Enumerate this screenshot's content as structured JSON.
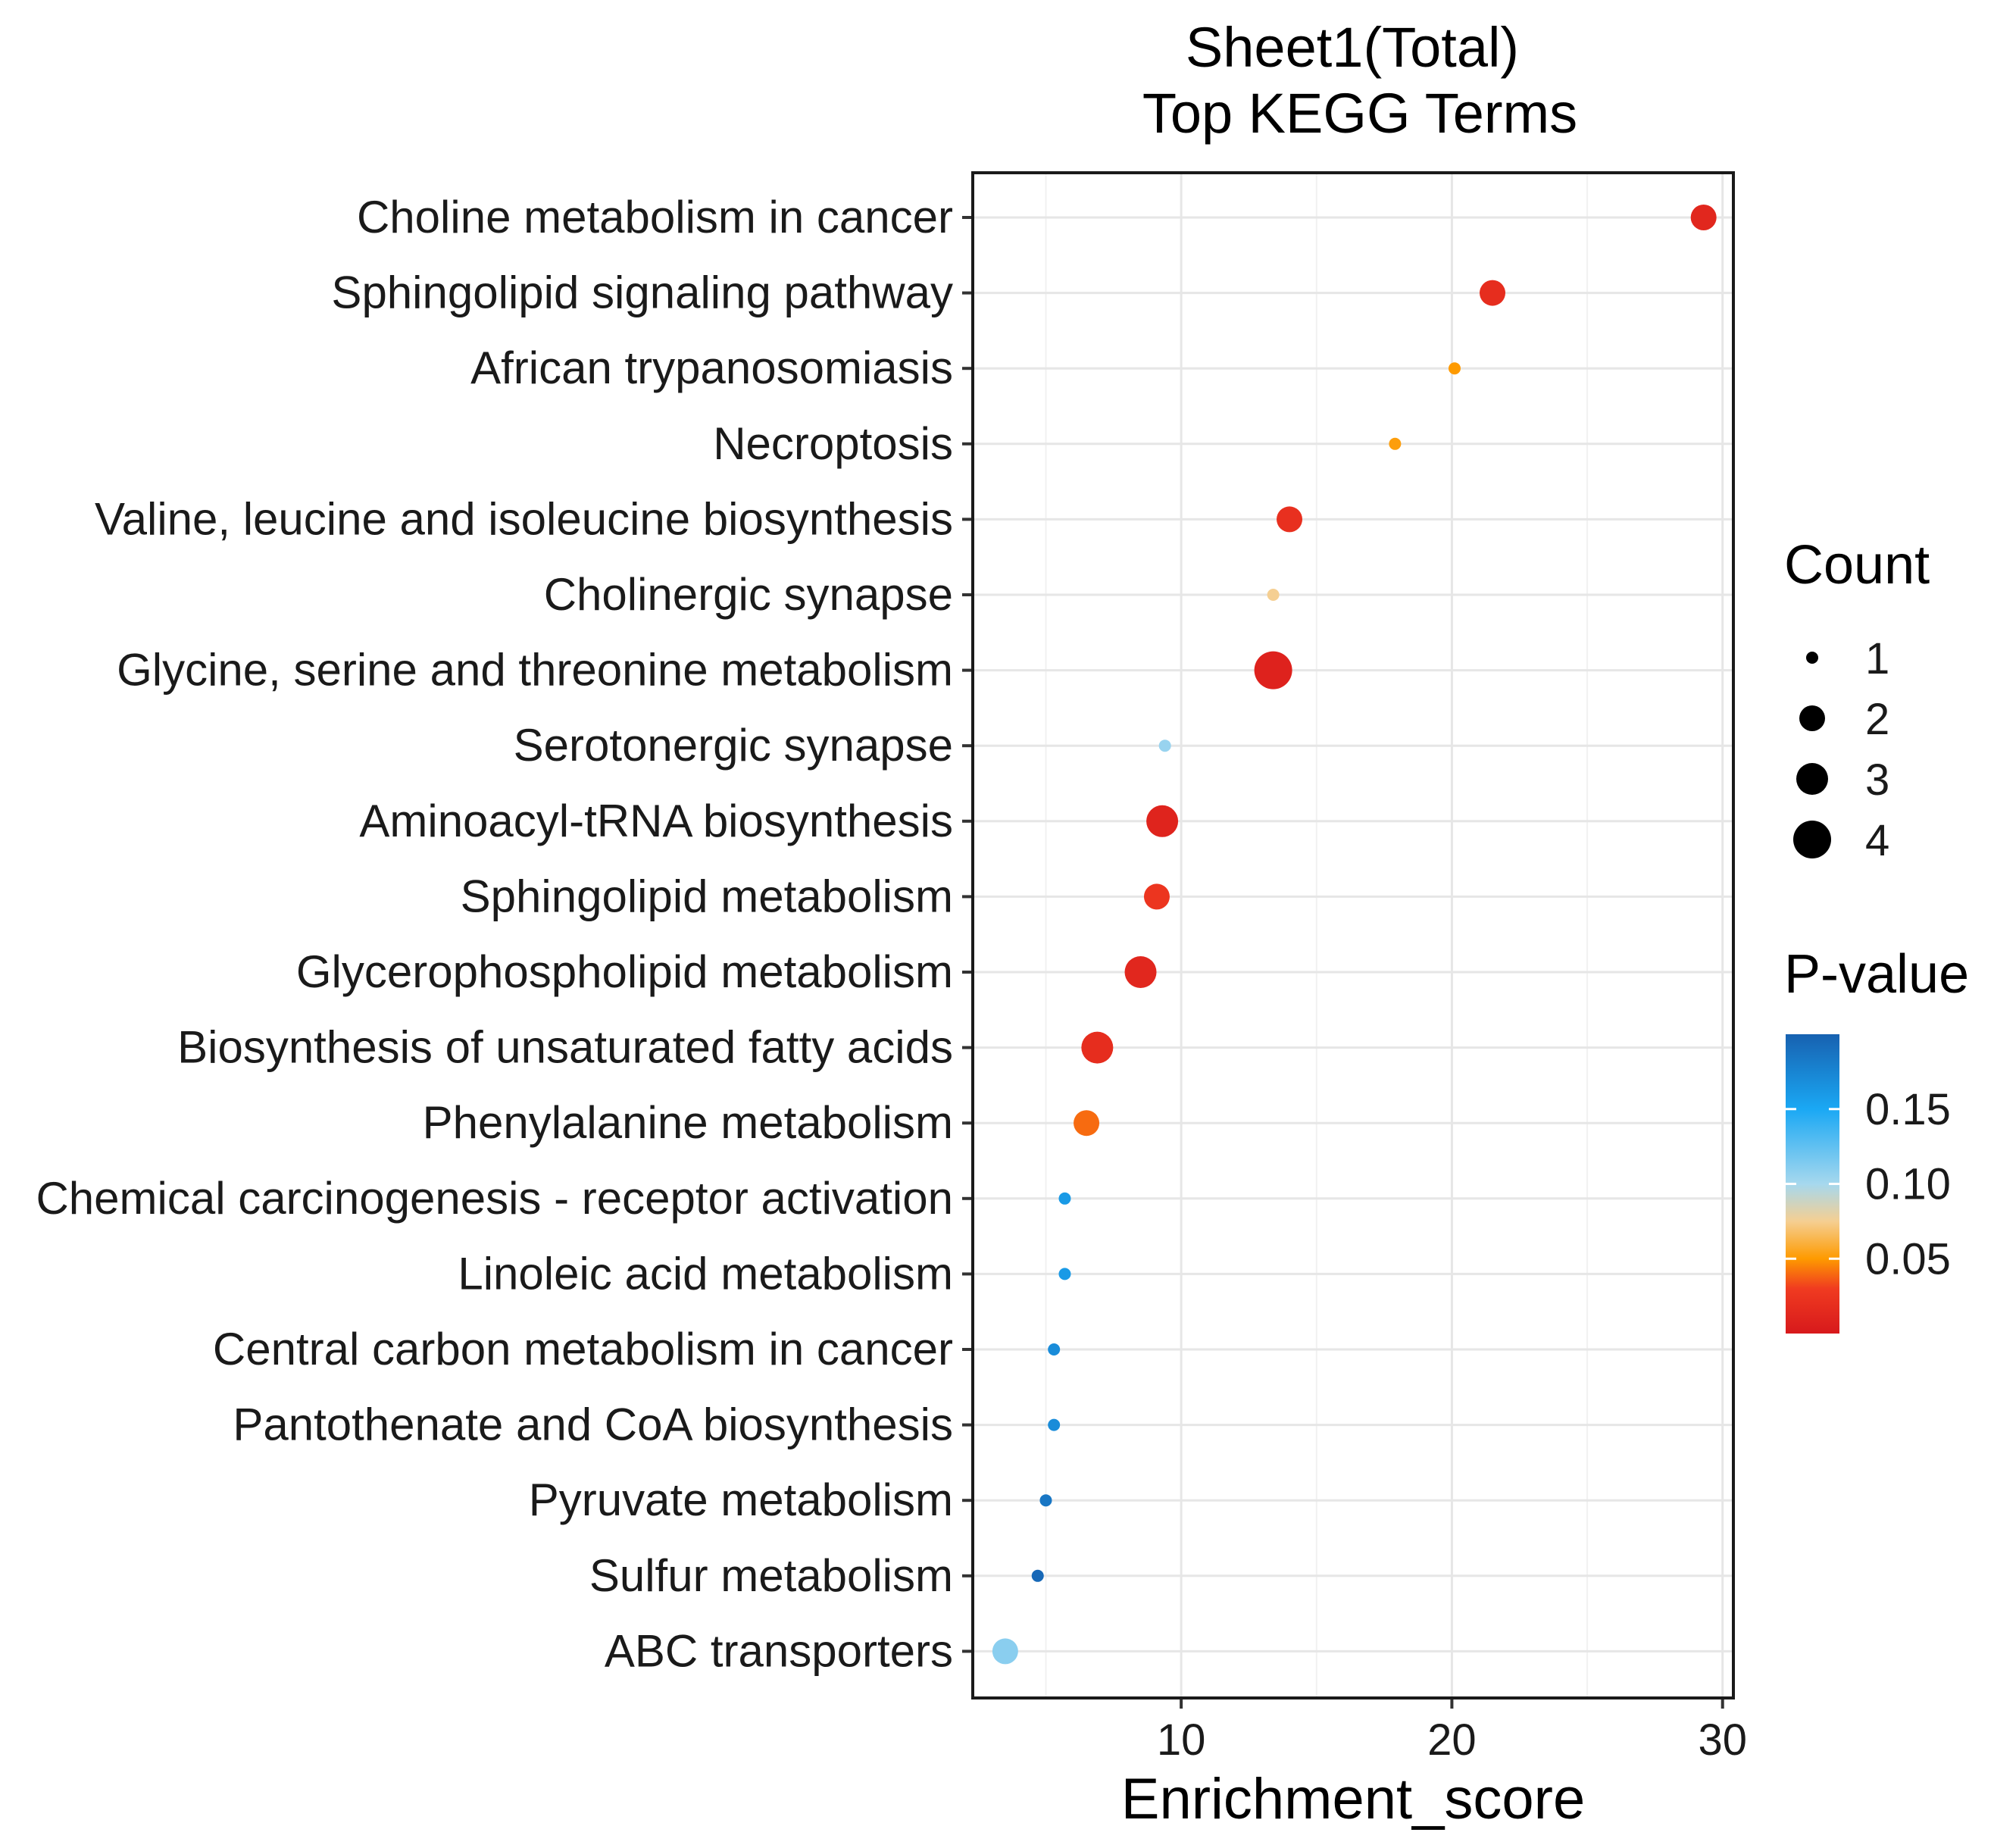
{
  "chart_data": {
    "type": "scatter",
    "title": [
      "Sheet1(Total)",
      "Top KEGG Terms"
    ],
    "xlabel": "Enrichment_score",
    "ylabel": "",
    "xlim": [
      2.3,
      30.4
    ],
    "xticks": [
      10,
      20,
      30
    ],
    "grid": true,
    "categories": [
      "Choline metabolism in cancer",
      "Sphingolipid signaling pathway",
      "African trypanosomiasis",
      "Necroptosis",
      "Valine, leucine and isoleucine biosynthesis",
      "Cholinergic synapse",
      "Glycine, serine and threonine metabolism",
      "Serotonergic synapse",
      "Aminoacyl-tRNA biosynthesis",
      "Sphingolipid metabolism",
      "Glycerophospholipid metabolism",
      "Biosynthesis of unsaturated fatty acids",
      "Phenylalanine metabolism",
      "Chemical carcinogenesis - receptor activation",
      "Linoleic acid metabolism",
      "Central carbon metabolism in cancer",
      "Pantothenate and CoA biosynthesis",
      "Pyruvate metabolism",
      "Sulfur metabolism",
      "ABC transporters"
    ],
    "points": [
      {
        "term": "Choline metabolism in cancer",
        "enrichment_score": 29.3,
        "count": 2,
        "pvalue": 0.012
      },
      {
        "term": "Sphingolipid signaling pathway",
        "enrichment_score": 21.5,
        "count": 2,
        "pvalue": 0.018
      },
      {
        "term": "African trypanosomiasis",
        "enrichment_score": 20.1,
        "count": 1,
        "pvalue": 0.05
      },
      {
        "term": "Necroptosis",
        "enrichment_score": 17.9,
        "count": 1,
        "pvalue": 0.052
      },
      {
        "term": "Valine, leucine and isoleucine biosynthesis",
        "enrichment_score": 14.0,
        "count": 2,
        "pvalue": 0.02
      },
      {
        "term": "Cholinergic synapse",
        "enrichment_score": 13.4,
        "count": 1,
        "pvalue": 0.075
      },
      {
        "term": "Glycine, serine and threonine metabolism",
        "enrichment_score": 13.4,
        "count": 4,
        "pvalue": 0.008
      },
      {
        "term": "Serotonergic synapse",
        "enrichment_score": 9.4,
        "count": 1,
        "pvalue": 0.105
      },
      {
        "term": "Aminoacyl-tRNA biosynthesis",
        "enrichment_score": 9.3,
        "count": 3,
        "pvalue": 0.01
      },
      {
        "term": "Sphingolipid metabolism",
        "enrichment_score": 9.1,
        "count": 2,
        "pvalue": 0.025
      },
      {
        "term": "Glycerophospholipid metabolism",
        "enrichment_score": 8.5,
        "count": 3,
        "pvalue": 0.012
      },
      {
        "term": "Biosynthesis of unsaturated fatty acids",
        "enrichment_score": 6.9,
        "count": 3,
        "pvalue": 0.018
      },
      {
        "term": "Phenylalanine metabolism",
        "enrichment_score": 6.5,
        "count": 2,
        "pvalue": 0.04
      },
      {
        "term": "Chemical carcinogenesis - receptor activation",
        "enrichment_score": 5.7,
        "count": 1,
        "pvalue": 0.16
      },
      {
        "term": "Linoleic acid metabolism",
        "enrichment_score": 5.7,
        "count": 1,
        "pvalue": 0.16
      },
      {
        "term": "Central carbon metabolism in cancer",
        "enrichment_score": 5.3,
        "count": 1,
        "pvalue": 0.17
      },
      {
        "term": "Pantothenate and CoA biosynthesis",
        "enrichment_score": 5.3,
        "count": 1,
        "pvalue": 0.17
      },
      {
        "term": "Pyruvate metabolism",
        "enrichment_score": 5.0,
        "count": 1,
        "pvalue": 0.185
      },
      {
        "term": "Sulfur metabolism",
        "enrichment_score": 4.7,
        "count": 1,
        "pvalue": 0.195
      },
      {
        "term": "ABC transporters",
        "enrichment_score": 3.5,
        "count": 2,
        "pvalue": 0.11
      }
    ],
    "size_legend": {
      "title": "Count",
      "values": [
        1,
        2,
        3,
        4
      ]
    },
    "color_legend": {
      "title": "P-value",
      "range": [
        0.0,
        0.2
      ],
      "ticks": [
        0.15,
        0.1,
        0.05
      ],
      "tick_labels": [
        "0.15",
        "0.10",
        "0.05"
      ],
      "palette": [
        {
          "v": 0.0,
          "color": "#d7191c"
        },
        {
          "v": 0.03,
          "color": "#f03b20"
        },
        {
          "v": 0.05,
          "color": "#fe9a00"
        },
        {
          "v": 0.075,
          "color": "#f5cf92"
        },
        {
          "v": 0.1,
          "color": "#a6d8ee"
        },
        {
          "v": 0.15,
          "color": "#1aa8f4"
        },
        {
          "v": 0.2,
          "color": "#1761b0"
        }
      ]
    }
  }
}
